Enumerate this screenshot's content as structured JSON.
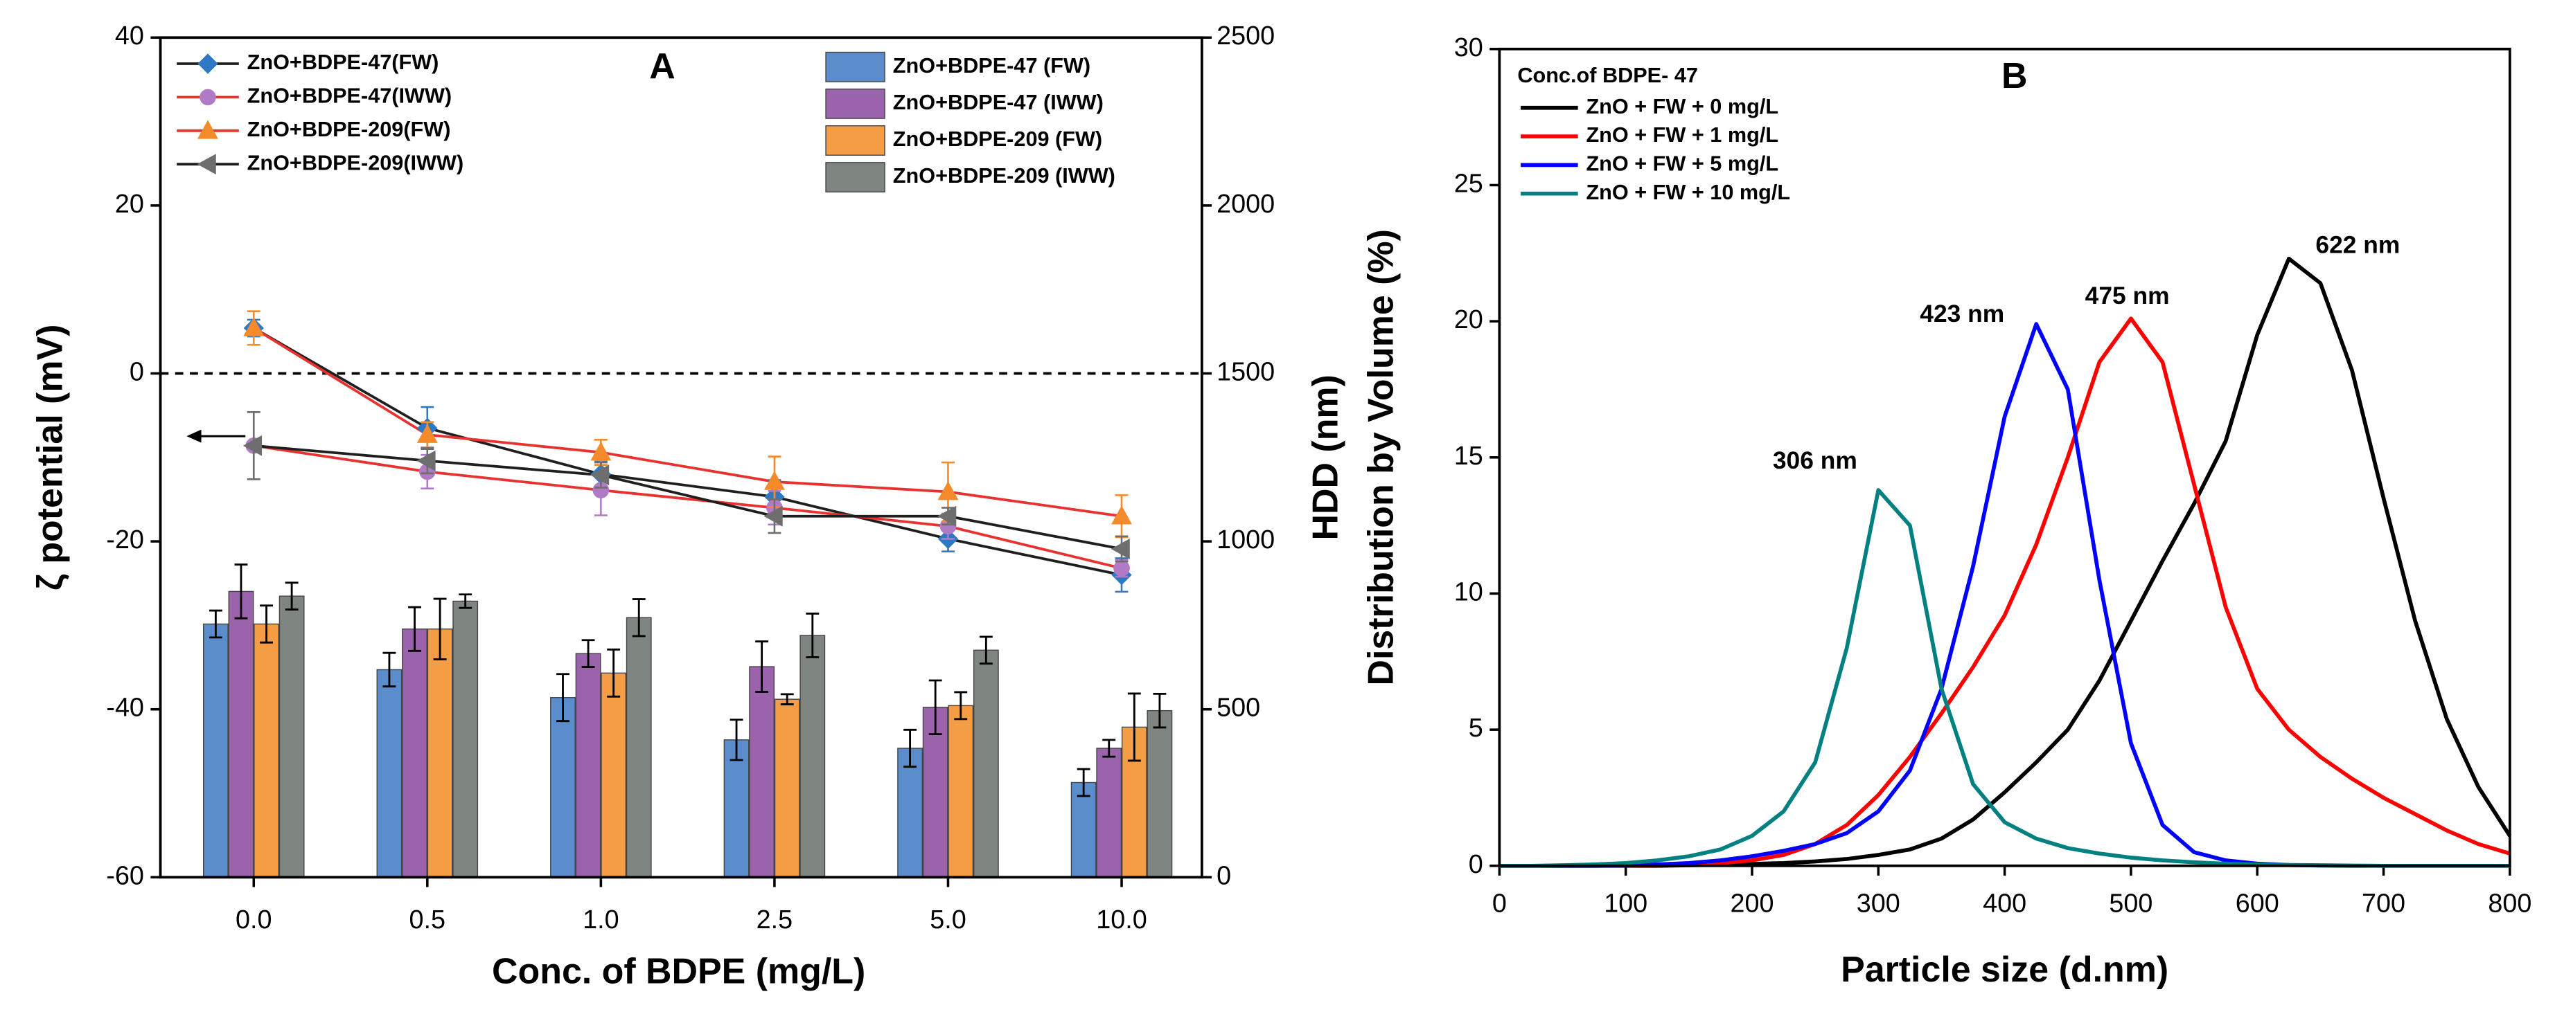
{
  "chart_data": [
    {
      "type": "combo",
      "title": "A",
      "x_label": "Conc. of BDPE (mg/L)",
      "y_label": "ζ potential (mV)",
      "y2_label": "HDD (nm)",
      "categories": [
        "0.0",
        "0.5",
        "1.0",
        "2.5",
        "5.0",
        "10.0"
      ],
      "ylim": [
        -60,
        40
      ],
      "yticks": [
        -60,
        -40,
        -20,
        0,
        20,
        40
      ],
      "y2lim": [
        0,
        2500
      ],
      "y2ticks": [
        0,
        500,
        1000,
        1500,
        2000,
        2500
      ],
      "hline": 0,
      "series": [
        {
          "name": "ZnO+BDPE-47 (FW)",
          "type": "bar",
          "axis": "y2",
          "color": "#5b8ccc",
          "values": [
            754,
            618,
            535,
            409,
            384,
            282
          ],
          "errors": [
            40,
            50,
            70,
            60,
            55,
            40
          ]
        },
        {
          "name": "ZnO+BDPE-47 (IWW)",
          "type": "bar",
          "axis": "y2",
          "color": "#9a63ab",
          "values": [
            851,
            739,
            666,
            627,
            506,
            384
          ],
          "errors": [
            80,
            65,
            40,
            75,
            80,
            25
          ]
        },
        {
          "name": "ZnO+BDPE-209 (FW)",
          "type": "bar",
          "axis": "y2",
          "color": "#f59d45",
          "values": [
            754,
            739,
            608,
            530,
            511,
            447
          ],
          "errors": [
            55,
            90,
            70,
            15,
            40,
            100
          ]
        },
        {
          "name": "ZnO+BDPE-209 (IWW)",
          "type": "bar",
          "axis": "y2",
          "color": "#7f8580",
          "values": [
            837,
            822,
            773,
            720,
            676,
            496
          ],
          "errors": [
            40,
            20,
            55,
            65,
            40,
            50
          ]
        },
        {
          "name": "ZnO+BDPE-47(FW)",
          "type": "line",
          "color": "#1f1f1f",
          "marker": "diamond",
          "marker_color": "#2f78c4",
          "values": [
            5.4,
            -6.5,
            -12,
            -14.7,
            -19.7,
            -24
          ],
          "errors": [
            1,
            2.5,
            1.5,
            2,
            1.5,
            2
          ]
        },
        {
          "name": "ZnO+BDPE-47(IWW)",
          "type": "line",
          "color": "#e8322f",
          "marker": "circle",
          "marker_color": "#b07ac6",
          "values": [
            -8.6,
            -11.7,
            -13.9,
            -16,
            -18.2,
            -23.2
          ],
          "errors": [
            4,
            2,
            3,
            2,
            1.5,
            1
          ]
        },
        {
          "name": "ZnO+BDPE-209(FW)",
          "type": "line",
          "color": "#e8322f",
          "marker": "triangle",
          "marker_color": "#f58a2a",
          "values": [
            5.4,
            -7.3,
            -9.4,
            -12.9,
            -14.1,
            -17
          ],
          "errors": [
            2,
            1.5,
            1.5,
            3,
            3.5,
            2.5
          ]
        },
        {
          "name": "ZnO+BDPE-209(IWW)",
          "type": "line",
          "color": "#1f1f1f",
          "marker": "triangle-left",
          "marker_color": "#6e6e6e",
          "values": [
            -8.6,
            -10.4,
            -12.1,
            -17,
            -17,
            -20.9
          ],
          "errors": [
            4,
            1.5,
            1.5,
            2,
            1,
            1.5
          ]
        }
      ]
    },
    {
      "type": "line",
      "title": "B",
      "x_label": "Particle size (d.nm)",
      "y_label": "Distribution by Volume (%)",
      "legend_title": "Conc.of BDPE- 47",
      "xlim": [
        0,
        800
      ],
      "xticks": [
        0,
        100,
        200,
        300,
        400,
        500,
        600,
        700,
        800
      ],
      "ylim": [
        0,
        30
      ],
      "yticks": [
        0,
        5,
        10,
        15,
        20,
        25,
        30
      ],
      "x": [
        0,
        25,
        50,
        75,
        100,
        125,
        150,
        175,
        200,
        225,
        250,
        275,
        300,
        325,
        350,
        375,
        400,
        425,
        450,
        475,
        500,
        525,
        550,
        575,
        600,
        625,
        650,
        675,
        700,
        725,
        750,
        775,
        800
      ],
      "series": [
        {
          "name": "ZnO + FW + 0 mg/L",
          "color": "#000000",
          "values": [
            0,
            0,
            0,
            0,
            0,
            0,
            0.02,
            0.04,
            0.07,
            0.1,
            0.16,
            0.25,
            0.4,
            0.6,
            1.0,
            1.7,
            2.7,
            3.8,
            5.0,
            6.8,
            9.0,
            11.2,
            13.3,
            15.6,
            19.5,
            22.3,
            21.4,
            18.2,
            13.5,
            9.0,
            5.4,
            2.9,
            1.1
          ]
        },
        {
          "name": "ZnO + FW + 1 mg/L",
          "color": "#ff0000",
          "values": [
            0,
            0,
            0,
            0,
            0.01,
            0.02,
            0.05,
            0.1,
            0.2,
            0.4,
            0.8,
            1.5,
            2.6,
            4.0,
            5.6,
            7.3,
            9.2,
            11.8,
            15.0,
            18.5,
            20.1,
            18.5,
            14.0,
            9.5,
            6.5,
            5.0,
            4.0,
            3.2,
            2.5,
            1.9,
            1.3,
            0.8,
            0.45
          ]
        },
        {
          "name": "ZnO + FW + 5 mg/L",
          "color": "#0000ff",
          "values": [
            0,
            0,
            0,
            0,
            0.02,
            0.05,
            0.1,
            0.2,
            0.35,
            0.55,
            0.8,
            1.2,
            2.0,
            3.5,
            6.5,
            11.0,
            16.5,
            19.9,
            17.5,
            10.5,
            4.5,
            1.5,
            0.5,
            0.2,
            0.08,
            0.03,
            0.01,
            0,
            0,
            0,
            0,
            0,
            0
          ]
        },
        {
          "name": "ZnO + FW + 10 mg/L",
          "color": "#008080",
          "values": [
            0,
            0,
            0.02,
            0.05,
            0.1,
            0.2,
            0.35,
            0.6,
            1.1,
            2.0,
            3.8,
            8.0,
            13.8,
            12.5,
            6.5,
            3.0,
            1.6,
            1.0,
            0.65,
            0.45,
            0.3,
            0.2,
            0.13,
            0.08,
            0.05,
            0.03,
            0.02,
            0.01,
            0,
            0,
            0,
            0,
            0
          ]
        }
      ],
      "annotations": [
        "306 nm",
        "423 nm",
        "475 nm",
        "622 nm"
      ]
    }
  ]
}
